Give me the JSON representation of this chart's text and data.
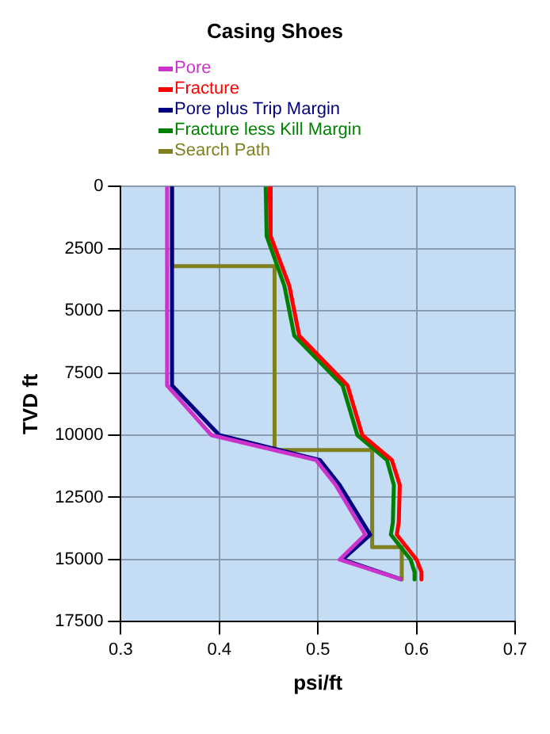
{
  "chart_data": {
    "type": "line",
    "title": "Casing Shoes",
    "xlabel": "psi/ft",
    "ylabel": "TVD ft",
    "xlim": [
      0.3,
      0.7
    ],
    "xticks": [
      0.3,
      0.4,
      0.5,
      0.6,
      0.7
    ],
    "ylim": [
      17500,
      0
    ],
    "yticks": [
      0,
      2500,
      5000,
      7500,
      10000,
      12500,
      15000,
      17500
    ],
    "grid": true,
    "legend": "top",
    "marker": "none",
    "line_style": "solid",
    "series": [
      {
        "name": "Pore",
        "color": "#cc33cc",
        "x": [
          0.347,
          0.347,
          0.392,
          0.498,
          0.518,
          0.548,
          0.522,
          0.585
        ],
        "values": [
          0,
          8000,
          10000,
          11000,
          12000,
          14000,
          15000,
          15800
        ]
      },
      {
        "name": "Fracture",
        "color": "#ff0000",
        "x": [
          0.451,
          0.452,
          0.471,
          0.481,
          0.53,
          0.545,
          0.575,
          0.583,
          0.582,
          0.58,
          0.6,
          0.605,
          0.605
        ],
        "values": [
          0,
          2000,
          4000,
          6000,
          8000,
          10000,
          11000,
          12000,
          13500,
          14000,
          15000,
          15500,
          15800
        ]
      },
      {
        "name": "Pore plus Trip Margin",
        "color": "#000080",
        "x": [
          0.352,
          0.352,
          0.4,
          0.502,
          0.522,
          0.553,
          0.525,
          0.585
        ],
        "values": [
          0,
          8000,
          10000,
          11000,
          12000,
          14000,
          15000,
          15800
        ]
      },
      {
        "name": "Fracture less Kill Margin",
        "color": "#008000",
        "x": [
          0.447,
          0.448,
          0.466,
          0.476,
          0.525,
          0.54,
          0.57,
          0.577,
          0.576,
          0.574,
          0.594,
          0.598,
          0.598
        ],
        "values": [
          0,
          2000,
          4000,
          6000,
          8000,
          10000,
          11000,
          12000,
          13500,
          14000,
          15000,
          15500,
          15800
        ]
      },
      {
        "name": "Search Path",
        "color": "#808020",
        "x": [
          0.352,
          0.352,
          0.456,
          0.456,
          0.555,
          0.555,
          0.585,
          0.585
        ],
        "values": [
          0,
          3200,
          3200,
          10600,
          10600,
          14500,
          14500,
          15800
        ]
      }
    ]
  }
}
